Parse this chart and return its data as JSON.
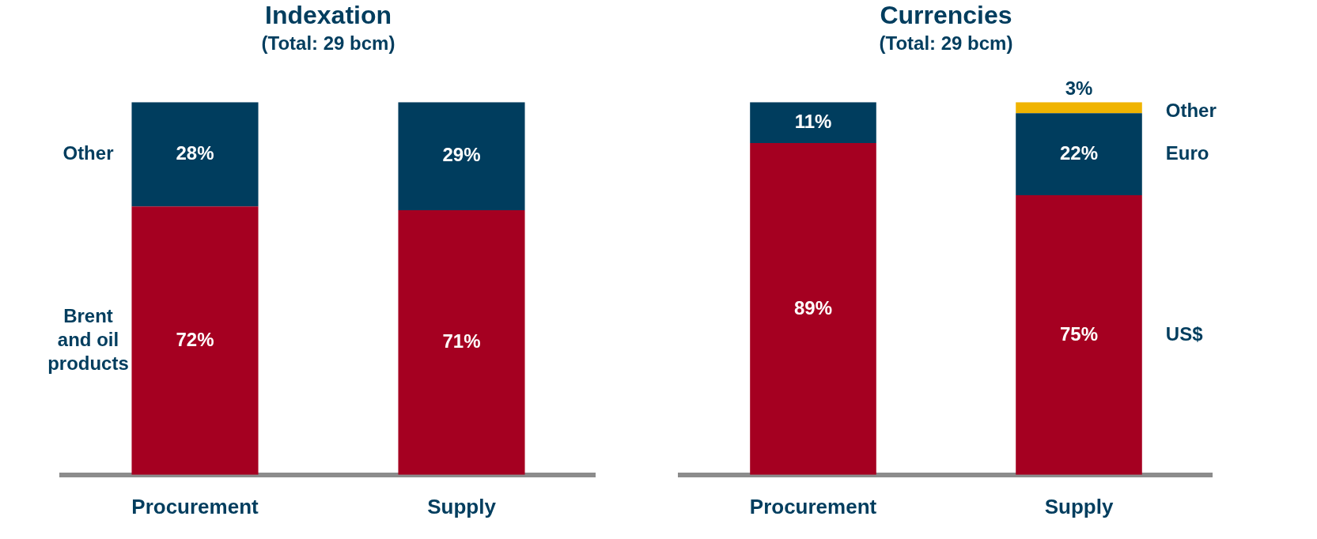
{
  "chart_data": [
    {
      "type": "bar",
      "title": "Indexation",
      "subtitle": "(Total: 29 bcm)",
      "categories": [
        "Procurement",
        "Supply"
      ],
      "stacked": true,
      "legend": "left",
      "series": [
        {
          "name": "Brent and oil products",
          "color": "#a50021",
          "values": [
            72,
            71
          ],
          "value_labels": [
            "72%",
            "71%"
          ]
        },
        {
          "name": "Other",
          "color": "#003d5e",
          "values": [
            28,
            29
          ],
          "value_labels": [
            "28%",
            "29%"
          ]
        }
      ]
    },
    {
      "type": "bar",
      "title": "Currencies",
      "subtitle": "(Total: 29 bcm)",
      "categories": [
        "Procurement",
        "Supply"
      ],
      "stacked": true,
      "legend": "right",
      "series": [
        {
          "name": "US$",
          "color": "#a50021",
          "values": [
            89,
            75
          ],
          "value_labels": [
            "89%",
            "75%"
          ]
        },
        {
          "name": "Euro",
          "color": "#003d5e",
          "values": [
            11,
            22
          ],
          "value_labels": [
            "11%",
            "22%"
          ]
        },
        {
          "name": "Other",
          "color": "#f0b400",
          "values": [
            0,
            3
          ],
          "value_labels": [
            null,
            "3%"
          ]
        }
      ]
    }
  ]
}
